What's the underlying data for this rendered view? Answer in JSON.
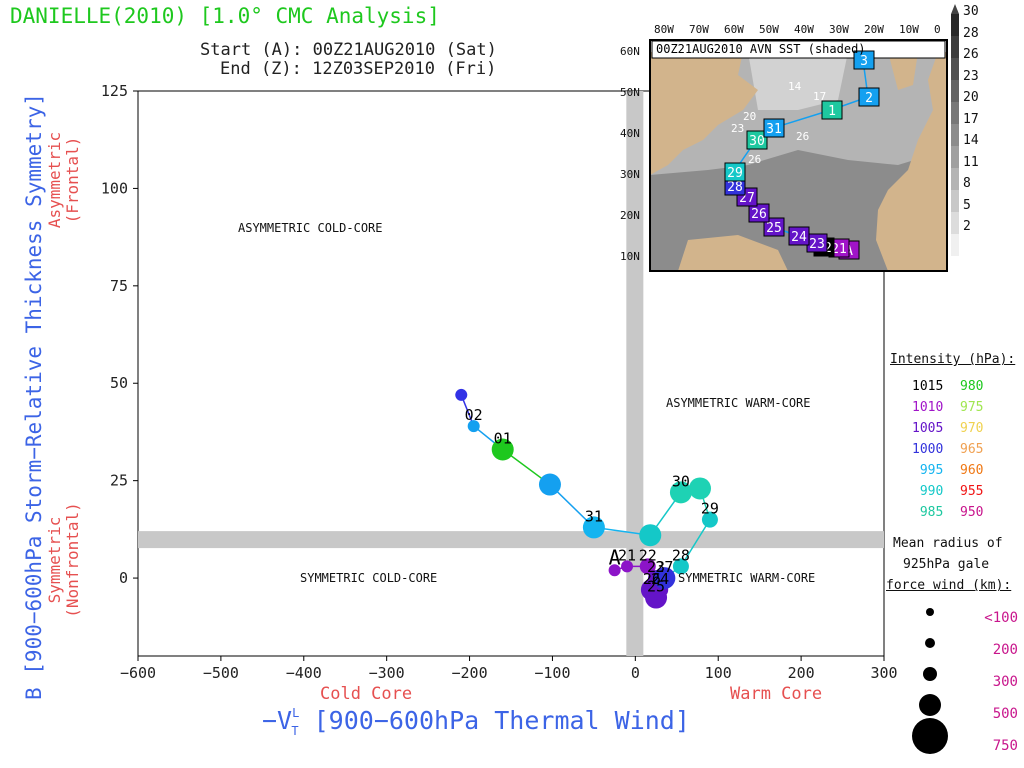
{
  "header": {
    "title": "DANIELLE(2010) [1.0° CMC Analysis]",
    "start": "Start (A): 00Z21AUG2010 (Sat)",
    "end": "End (Z): 12Z03SEP2010 (Fri)"
  },
  "quadrants": {
    "asym_cold": "ASYMMETRIC COLD-CORE",
    "asym_warm": "ASYMMETRIC WARM-CORE",
    "sym_cold": "SYMMETRIC COLD-CORE",
    "sym_warm": "SYMMETRIC WARM-CORE"
  },
  "axes": {
    "xlabel": "−V_T^L [900−600hPa Thermal Wind]",
    "xlabel_main": "−V",
    "xlabel_sup": "L",
    "xlabel_sub": "T",
    "xlabel_rest": " [900−600hPa Thermal Wind]",
    "ylabel": "B [900−600hPa Storm−Relative Thickness Symmetry]",
    "cold_core": "Cold Core",
    "warm_core": "Warm Core",
    "asym_label1": "Asymmetric",
    "asym_label2": "(Frontal)",
    "sym_label1": "Symmetric",
    "sym_label2": "(Nonfrontal)"
  },
  "chart_data": {
    "type": "scatter",
    "title": "DANIELLE(2010) [1.0° CMC Analysis]",
    "xlabel": "−V_T^L [900−600hPa Thermal Wind]",
    "ylabel": "B [900−600hPa Storm−Relative Thickness Symmetry]",
    "xlim": [
      -600,
      300
    ],
    "ylim": [
      -20,
      125
    ],
    "xticks": [
      -600,
      -500,
      -400,
      -300,
      -200,
      -100,
      0,
      100,
      200,
      300
    ],
    "yticks": [
      0,
      25,
      50,
      75,
      100,
      125
    ],
    "zero_band": {
      "x": 0,
      "y": 10
    },
    "track": [
      {
        "x": -25,
        "y": 2,
        "label": "A",
        "color": "#8c14c8",
        "size": 1
      },
      {
        "x": -10,
        "y": 3,
        "label": "21",
        "color": "#8c14c8",
        "size": 1
      },
      {
        "x": 15,
        "y": 3,
        "label": "22",
        "color": "#8c14c8",
        "size": 2
      },
      {
        "x": 25,
        "y": 0,
        "label": "23",
        "color": "#6414c8",
        "size": 2
      },
      {
        "x": 30,
        "y": -3,
        "label": "24",
        "color": "#6414c8",
        "size": 2
      },
      {
        "x": 25,
        "y": -5,
        "label": "25",
        "color": "#6414c8",
        "size": 3
      },
      {
        "x": 20,
        "y": -3,
        "label": "26",
        "color": "#6414c8",
        "size": 3
      },
      {
        "x": 35,
        "y": 0,
        "label": "27",
        "color": "#3232dc",
        "size": 3
      },
      {
        "x": 55,
        "y": 3,
        "label": "28",
        "color": "#14c8c8",
        "size": 2
      },
      {
        "x": 90,
        "y": 15,
        "label": "29",
        "color": "#14c8c8",
        "size": 2
      },
      {
        "x": 78,
        "y": 23,
        "label": "",
        "color": "#1ed2b4",
        "size": 3
      },
      {
        "x": 55,
        "y": 22,
        "label": "30",
        "color": "#1ed2b4",
        "size": 3
      },
      {
        "x": 18,
        "y": 11,
        "label": "",
        "color": "#14c8c8",
        "size": 3
      },
      {
        "x": -50,
        "y": 13,
        "label": "31",
        "color": "#14b4f0",
        "size": 3
      },
      {
        "x": -103,
        "y": 24,
        "label": "",
        "color": "#14a0f0",
        "size": 3
      },
      {
        "x": -160,
        "y": 33,
        "label": "01",
        "color": "#1ec81e",
        "size": 3
      },
      {
        "x": -195,
        "y": 39,
        "label": "02",
        "color": "#14a0f0",
        "size": 1
      },
      {
        "x": -210,
        "y": 47,
        "label": "",
        "color": "#3232e6",
        "size": 1
      }
    ]
  },
  "legend": {
    "title": "Intensity (hPa):",
    "col1": [
      {
        "label": "1015",
        "color": "#000000"
      },
      {
        "label": "1010",
        "color": "#a014c8"
      },
      {
        "label": "1005",
        "color": "#6414c8"
      },
      {
        "label": "1000",
        "color": "#3232dc"
      },
      {
        "label": "995",
        "color": "#14b4f0"
      },
      {
        "label": "990",
        "color": "#14c8c8"
      },
      {
        "label": "985",
        "color": "#1ec8a0"
      }
    ],
    "col2": [
      {
        "label": "980",
        "color": "#1ec81e"
      },
      {
        "label": "975",
        "color": "#a0e650"
      },
      {
        "label": "970",
        "color": "#f0d250"
      },
      {
        "label": "965",
        "color": "#f0a050"
      },
      {
        "label": "960",
        "color": "#f07814"
      },
      {
        "label": "955",
        "color": "#f01414"
      },
      {
        "label": "950",
        "color": "#c8148c"
      }
    ],
    "radius_title1": "Mean radius of",
    "radius_title2": "925hPa gale",
    "radius_title3": "force wind (km):",
    "radius": [
      {
        "label": "<100",
        "size": 1
      },
      {
        "label": "200",
        "size": 2
      },
      {
        "label": "300",
        "size": 3
      },
      {
        "label": "500",
        "size": 4
      },
      {
        "label": "750",
        "size": 5
      }
    ]
  },
  "inset": {
    "title": "00Z21AUG2010 AVN SST (shaded)",
    "lon_labels": [
      "80W",
      "70W",
      "60W",
      "50W",
      "40W",
      "30W",
      "20W",
      "10W",
      "0"
    ],
    "lat_labels": [
      "60N",
      "50N",
      "40N",
      "30N",
      "20N",
      "10N"
    ],
    "colorbar": [
      "30",
      "28",
      "26",
      "23",
      "20",
      "17",
      "14",
      "11",
      "8",
      "5",
      "2"
    ],
    "contour_labels": [
      "14",
      "17",
      "20",
      "23",
      "26",
      "26"
    ],
    "track": [
      {
        "label": "A",
        "color": "#a014c8"
      },
      {
        "label": "21",
        "color": "#a014c8"
      },
      {
        "label": "22",
        "color": "#000000"
      },
      {
        "label": "23",
        "color": "#6414c8"
      },
      {
        "label": "24",
        "color": "#6414c8"
      },
      {
        "label": "25",
        "color": "#6414c8"
      },
      {
        "label": "26",
        "color": "#6414c8"
      },
      {
        "label": "27",
        "color": "#6414c8"
      },
      {
        "label": "28",
        "color": "#3232dc"
      },
      {
        "label": "29",
        "color": "#14c8c8"
      },
      {
        "label": "30",
        "color": "#1ec8a0"
      },
      {
        "label": "31",
        "color": "#14a0f0"
      },
      {
        "label": "1",
        "color": "#1ec8a0"
      },
      {
        "label": "2",
        "color": "#14a0f0"
      },
      {
        "label": "3",
        "color": "#14a0f0"
      }
    ]
  }
}
